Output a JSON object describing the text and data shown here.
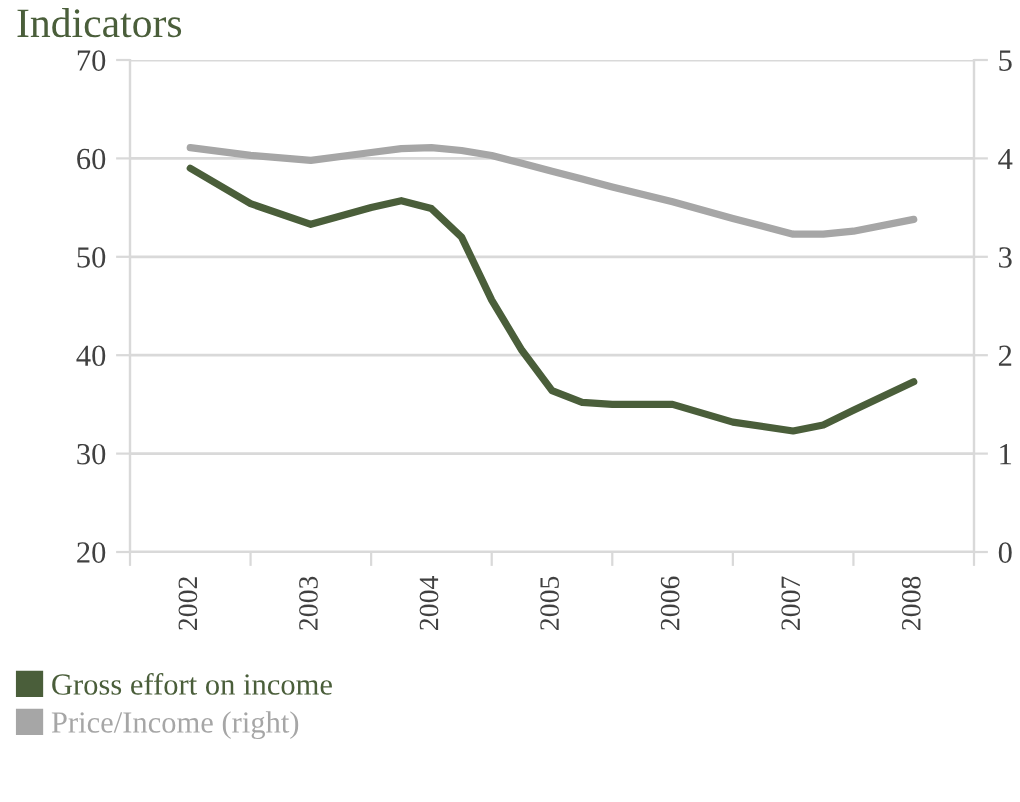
{
  "chart_data": {
    "type": "line",
    "title": "Indicators",
    "x": [
      2002,
      2002.5,
      2003,
      2003.5,
      2003.75,
      2004,
      2004.25,
      2004.5,
      2004.75,
      2005,
      2005.25,
      2005.5,
      2006,
      2006.5,
      2007,
      2007.25,
      2007.5,
      2008
    ],
    "series": [
      {
        "name": "Gross effort on income",
        "color": "#4a5e3a",
        "values": [
          59,
          55.4,
          53.3,
          55.0,
          55.7,
          54.9,
          52.0,
          45.6,
          40.5,
          36.4,
          35.2,
          35.0,
          35.0,
          33.2,
          32.3,
          32.9,
          34.4,
          37.3
        ]
      },
      {
        "name": "Price/Income (right)",
        "color": "#a6a6a6",
        "axis": "y2",
        "values": [
          4.11,
          4.03,
          3.98,
          4.06,
          4.1,
          4.11,
          4.08,
          4.03,
          3.95,
          3.87,
          3.79,
          3.71,
          3.56,
          3.39,
          3.23,
          3.23,
          3.26,
          3.38
        ]
      }
    ],
    "xlim": [
      2001.5,
      2008.5
    ],
    "xticks": [
      {
        "value": 2001.5,
        "label": null
      },
      {
        "value": 2002,
        "label": "2002"
      },
      {
        "value": 2002.5,
        "label": null
      },
      {
        "value": 2003,
        "label": "2003"
      },
      {
        "value": 2003.5,
        "label": null
      },
      {
        "value": 2004,
        "label": "2004"
      },
      {
        "value": 2004.5,
        "label": null
      },
      {
        "value": 2005,
        "label": "2005"
      },
      {
        "value": 2005.5,
        "label": null
      },
      {
        "value": 2006,
        "label": "2006"
      },
      {
        "value": 2006.5,
        "label": null
      },
      {
        "value": 2007,
        "label": "2007"
      },
      {
        "value": 2007.5,
        "label": null
      },
      {
        "value": 2008,
        "label": "2008"
      },
      {
        "value": 2008.5,
        "label": null
      }
    ],
    "ylim": [
      20,
      70
    ],
    "yticks": [
      20,
      30,
      40,
      50,
      60,
      70
    ],
    "y2lim": [
      0,
      5
    ],
    "y2ticks": [
      0,
      1,
      2,
      3,
      4,
      5
    ],
    "grid": "y",
    "legend": "bottom left",
    "marker": "none",
    "line_style": "solid"
  }
}
